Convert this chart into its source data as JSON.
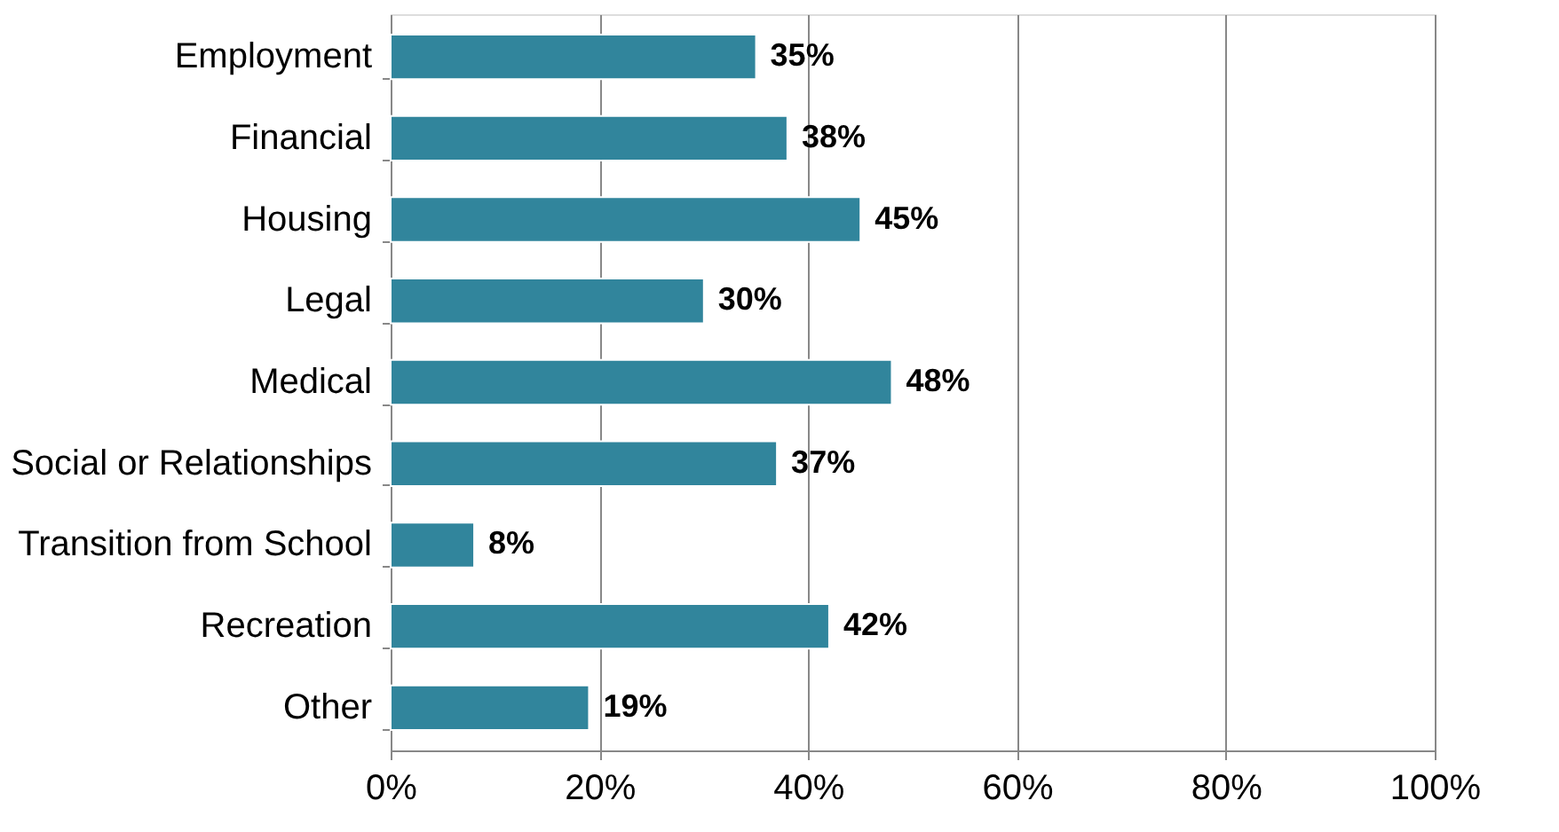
{
  "chart_data": {
    "type": "bar",
    "orientation": "horizontal",
    "categories": [
      "Employment",
      "Financial",
      "Housing",
      "Legal",
      "Medical",
      "Social or Relationships",
      "Transition from School",
      "Recreation",
      "Other"
    ],
    "values": [
      35,
      38,
      45,
      30,
      48,
      37,
      8,
      42,
      19
    ],
    "value_labels": [
      "35%",
      "38%",
      "45%",
      "30%",
      "48%",
      "37%",
      "8%",
      "42%",
      "19%"
    ],
    "color": "#31859c",
    "xlim": [
      0,
      100
    ],
    "xticks": [
      {
        "value": 0,
        "label": "0%"
      },
      {
        "value": 20,
        "label": "20%"
      },
      {
        "value": 40,
        "label": "40%"
      },
      {
        "value": 60,
        "label": "60%"
      },
      {
        "value": 80,
        "label": "80%"
      },
      {
        "value": 100,
        "label": "100%"
      }
    ],
    "grid": "x"
  }
}
